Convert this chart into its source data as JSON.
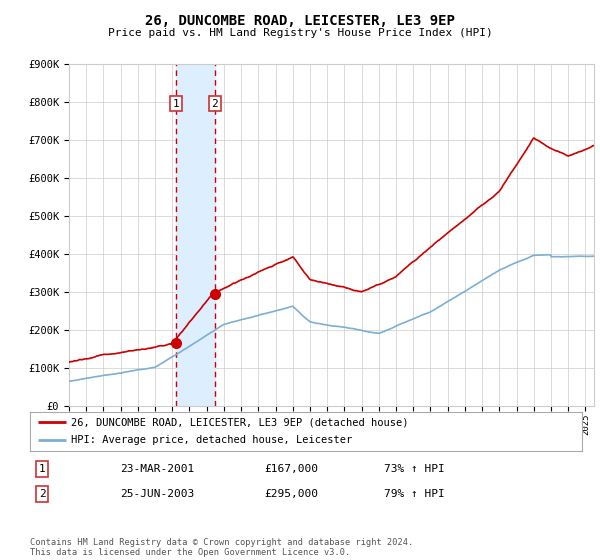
{
  "title": "26, DUNCOMBE ROAD, LEICESTER, LE3 9EP",
  "subtitle": "Price paid vs. HM Land Registry's House Price Index (HPI)",
  "ylim": [
    0,
    900000
  ],
  "yticks": [
    0,
    100000,
    200000,
    300000,
    400000,
    500000,
    600000,
    700000,
    800000,
    900000
  ],
  "ytick_labels": [
    "£0",
    "£100K",
    "£200K",
    "£300K",
    "£400K",
    "£500K",
    "£600K",
    "£700K",
    "£800K",
    "£900K"
  ],
  "x_start_year": 1995,
  "x_end_year": 2025,
  "transaction1_date": 2001.22,
  "transaction1_price": 167000,
  "transaction1_label": "1",
  "transaction2_date": 2003.48,
  "transaction2_price": 295000,
  "transaction2_label": "2",
  "legend_line1": "26, DUNCOMBE ROAD, LEICESTER, LE3 9EP (detached house)",
  "legend_line2": "HPI: Average price, detached house, Leicester",
  "table_row1_num": "1",
  "table_row1_date": "23-MAR-2001",
  "table_row1_price": "£167,000",
  "table_row1_hpi": "73% ↑ HPI",
  "table_row2_num": "2",
  "table_row2_date": "25-JUN-2003",
  "table_row2_price": "£295,000",
  "table_row2_hpi": "79% ↑ HPI",
  "footer": "Contains HM Land Registry data © Crown copyright and database right 2024.\nThis data is licensed under the Open Government Licence v3.0.",
  "red_line_color": "#cc0000",
  "blue_line_color": "#7bafd4",
  "shade_color": "#ddeeff",
  "dashed_line_color": "#cc0000",
  "grid_color": "#cccccc",
  "bg_color": "#ffffff",
  "box_color": "#cc3333"
}
